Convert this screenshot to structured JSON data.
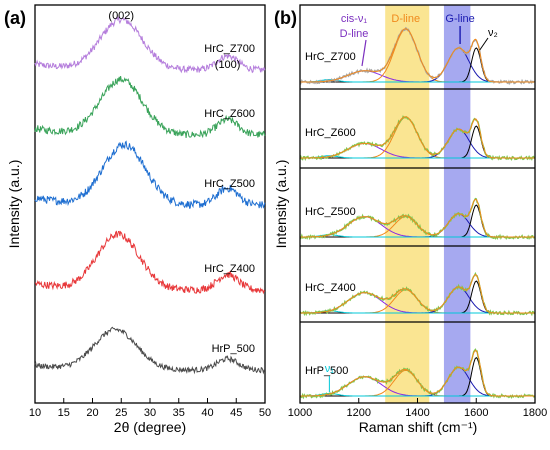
{
  "chart_data": [
    {
      "panel": "(a)",
      "type": "line",
      "xlabel": "2θ (degree)",
      "ylabel": "Intensity (a.u.)",
      "xlim": [
        10,
        50
      ],
      "xticks": [
        10,
        15,
        20,
        25,
        30,
        35,
        40,
        45,
        50
      ],
      "annotations": [
        {
          "text": "(002)",
          "x": 25
        },
        {
          "text": "(100)",
          "x": 43.5
        }
      ],
      "series": [
        {
          "name": "HrC_Z700",
          "color": "#b57edc",
          "peak002": 25,
          "peak100": 43.5
        },
        {
          "name": "HrC_Z600",
          "color": "#3aa35a",
          "peak002": 25,
          "peak100": 43.5
        },
        {
          "name": "HrC_Z500",
          "color": "#1f6fd1",
          "peak002": 25.5,
          "peak100": 43.5
        },
        {
          "name": "HrC_Z400",
          "color": "#e8383a",
          "peak002": 24.5,
          "peak100": 43.5
        },
        {
          "name": "HrP_500",
          "color": "#4a4a4a",
          "peak002": 24,
          "peak100": 43.5
        }
      ]
    },
    {
      "panel": "(b)",
      "type": "line",
      "xlabel": "Raman shift (cm⁻¹)",
      "ylabel": "Intensity (a.u.)",
      "xlim": [
        1000,
        1800
      ],
      "xticks": [
        1000,
        1200,
        1400,
        1600,
        1800
      ],
      "bands": [
        {
          "name": "D-line",
          "from": 1290,
          "to": 1440,
          "color": "#f6d34a"
        },
        {
          "name": "G-line",
          "from": 1490,
          "to": 1580,
          "color": "#6b6fe6"
        }
      ],
      "annotations": [
        {
          "text": "cis-ν₁",
          "color": "#7b2fbf"
        },
        {
          "text": "D-line",
          "color": "#7b2fbf"
        },
        {
          "text": "D-line",
          "color": "#f08a1c"
        },
        {
          "text": "G-line",
          "color": "#1a1ab0"
        },
        {
          "text": "ν₂",
          "color": "#000000"
        },
        {
          "text": "ν₁",
          "color": "#00c8d8"
        }
      ],
      "components": [
        {
          "name": "cis-ν1 D-line",
          "center": 1220,
          "color": "#8a2be2"
        },
        {
          "name": "D-line",
          "center": 1360,
          "color": "#f08a1c"
        },
        {
          "name": "G-line",
          "center": 1540,
          "color": "#1a1ab0"
        },
        {
          "name": "ν2",
          "center": 1600,
          "color": "#000000"
        },
        {
          "name": "ν1",
          "center": 1100,
          "color": "#00c8d8"
        }
      ],
      "series": [
        {
          "name": "HrC_Z700",
          "amps": [
            0.18,
            0.85,
            0.55,
            0.55
          ]
        },
        {
          "name": "HrC_Z600",
          "amps": [
            0.25,
            0.7,
            0.5,
            0.55
          ]
        },
        {
          "name": "HrC_Z500",
          "amps": [
            0.35,
            0.35,
            0.4,
            0.55
          ]
        },
        {
          "name": "HrC_Z400",
          "amps": [
            0.35,
            0.4,
            0.45,
            0.55
          ]
        },
        {
          "name": "HrP_500",
          "amps": [
            0.3,
            0.4,
            0.45,
            0.6
          ]
        }
      ]
    }
  ]
}
